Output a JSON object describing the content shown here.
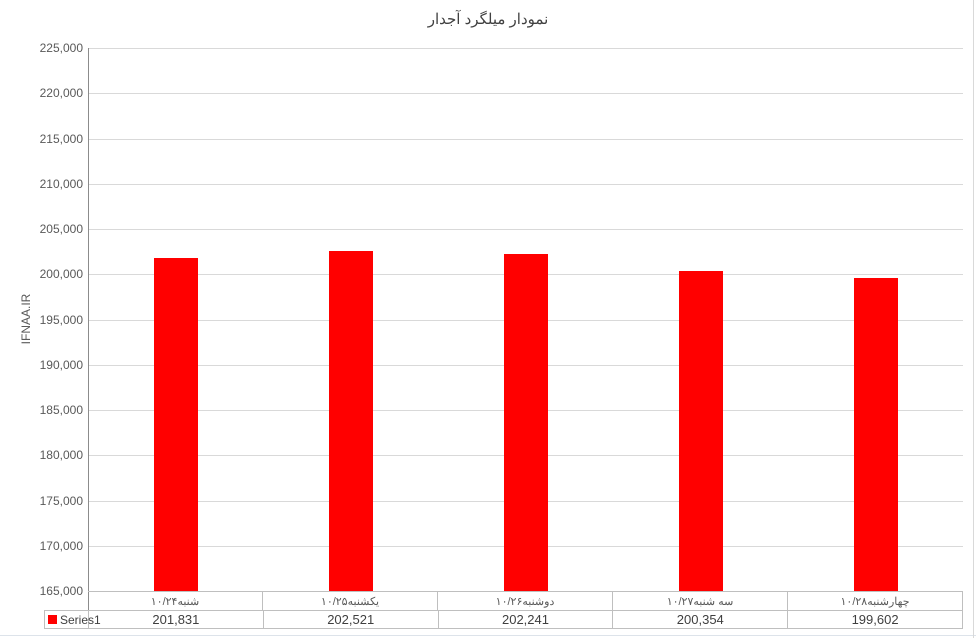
{
  "title": "نمودار میلگرد آجدار",
  "y_axis": {
    "label": "IFNAA.IR",
    "min": 165000,
    "max": 225000,
    "step": 5000
  },
  "legend": {
    "series_label": "Series1",
    "marker_color": "#ff0000"
  },
  "colors": {
    "bar": "#ff0000",
    "gridline": "#d9d9d9",
    "axis_line": "#8c8c8c",
    "table_border": "#bfbfbf"
  },
  "chart_data": {
    "type": "bar",
    "title": "نمودار میلگرد آجدار",
    "categories": [
      "شنبه۱۰/۲۴",
      "یکشنبه۱۰/۲۵",
      "دوشنبه۱۰/۲۶",
      "سه شنبه۱۰/۲۷",
      "چهارشنبه۱۰/۲۸"
    ],
    "series": [
      {
        "name": "Series1",
        "color": "#ff0000",
        "values": [
          201831,
          202521,
          202241,
          200354,
          199602
        ],
        "value_labels": [
          "201,831",
          "202,521",
          "202,241",
          "200,354",
          "199,602"
        ]
      }
    ],
    "xlabel": "",
    "ylabel": "IFNAA.IR",
    "ylim": [
      165000,
      225000
    ],
    "ytick_step": 5000,
    "ytick_labels": [
      "165,000",
      "170,000",
      "175,000",
      "180,000",
      "185,000",
      "190,000",
      "195,000",
      "200,000",
      "205,000",
      "210,000",
      "215,000",
      "220,000",
      "225,000"
    ],
    "grid": true,
    "legend_position": "data-table-bottom-left",
    "data_table_shown": true
  }
}
